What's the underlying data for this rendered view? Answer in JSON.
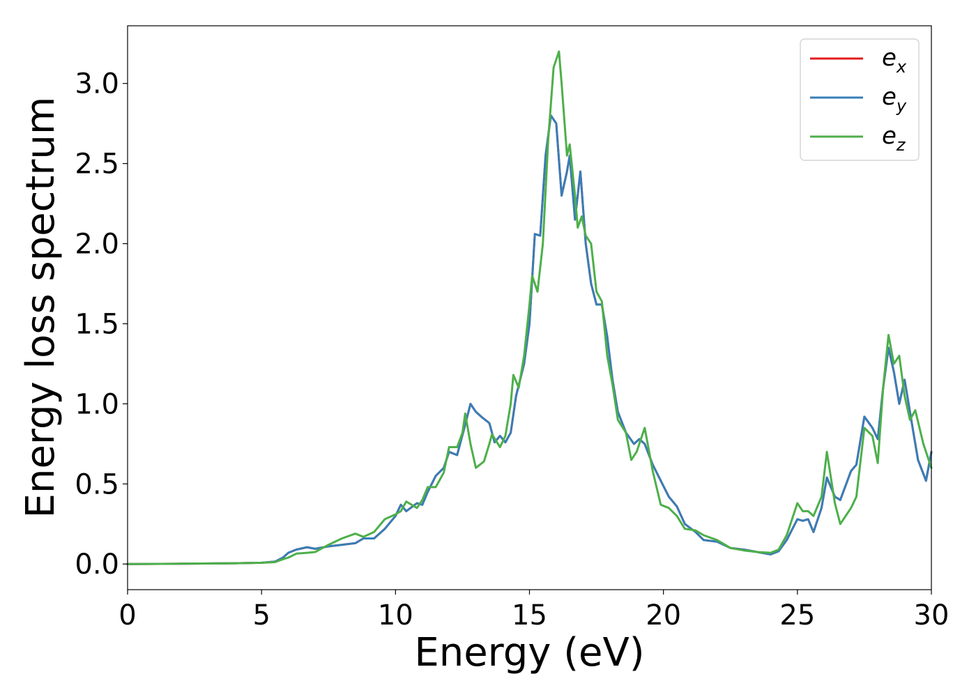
{
  "chart_data": {
    "type": "line",
    "title": "",
    "xlabel": "Energy (eV)",
    "ylabel": "Energy loss spectrum",
    "xlim": [
      0,
      30
    ],
    "ylim": [
      -0.16,
      3.36
    ],
    "xticks": [
      0,
      5,
      10,
      15,
      20,
      25,
      30
    ],
    "xtick_labels": [
      "0",
      "5",
      "10",
      "15",
      "20",
      "25",
      "30"
    ],
    "yticks": [
      0.0,
      0.5,
      1.0,
      1.5,
      2.0,
      2.5,
      3.0
    ],
    "ytick_labels": [
      "0.0",
      "0.5",
      "1.0",
      "1.5",
      "2.0",
      "2.5",
      "3.0"
    ],
    "grid": false,
    "legend_position": "top-right",
    "series": [
      {
        "name": "e",
        "subscript": "x",
        "color": "#e41a1c",
        "points": [
          [
            0,
            0.0
          ],
          [
            2,
            0.002
          ],
          [
            4,
            0.005
          ],
          [
            5,
            0.008
          ],
          [
            5.5,
            0.015
          ],
          [
            5.8,
            0.04
          ],
          [
            6,
            0.07
          ],
          [
            6.3,
            0.09
          ],
          [
            6.7,
            0.105
          ],
          [
            7,
            0.095
          ],
          [
            7.5,
            0.11
          ],
          [
            8,
            0.12
          ],
          [
            8.5,
            0.13
          ],
          [
            8.8,
            0.16
          ],
          [
            9.2,
            0.16
          ],
          [
            9.6,
            0.22
          ],
          [
            10,
            0.3
          ],
          [
            10.2,
            0.37
          ],
          [
            10.4,
            0.33
          ],
          [
            10.8,
            0.38
          ],
          [
            11,
            0.37
          ],
          [
            11.2,
            0.45
          ],
          [
            11.5,
            0.55
          ],
          [
            11.8,
            0.6
          ],
          [
            12,
            0.7
          ],
          [
            12.3,
            0.68
          ],
          [
            12.6,
            0.87
          ],
          [
            12.8,
            1.0
          ],
          [
            13.0,
            0.95
          ],
          [
            13.2,
            0.92
          ],
          [
            13.5,
            0.88
          ],
          [
            13.7,
            0.76
          ],
          [
            13.9,
            0.8
          ],
          [
            14.1,
            0.76
          ],
          [
            14.3,
            0.82
          ],
          [
            14.5,
            1.05
          ],
          [
            14.8,
            1.25
          ],
          [
            15.0,
            1.5
          ],
          [
            15.2,
            2.06
          ],
          [
            15.4,
            2.05
          ],
          [
            15.6,
            2.55
          ],
          [
            15.8,
            2.8
          ],
          [
            16.0,
            2.75
          ],
          [
            16.2,
            2.3
          ],
          [
            16.4,
            2.45
          ],
          [
            16.5,
            2.55
          ],
          [
            16.7,
            2.15
          ],
          [
            16.9,
            2.45
          ],
          [
            17.1,
            2.0
          ],
          [
            17.3,
            1.75
          ],
          [
            17.5,
            1.62
          ],
          [
            17.7,
            1.62
          ],
          [
            17.9,
            1.42
          ],
          [
            18.1,
            1.15
          ],
          [
            18.3,
            0.95
          ],
          [
            18.6,
            0.82
          ],
          [
            18.9,
            0.75
          ],
          [
            19.1,
            0.78
          ],
          [
            19.3,
            0.75
          ],
          [
            19.6,
            0.62
          ],
          [
            19.9,
            0.52
          ],
          [
            20.2,
            0.42
          ],
          [
            20.5,
            0.36
          ],
          [
            20.8,
            0.25
          ],
          [
            21.2,
            0.2
          ],
          [
            21.5,
            0.15
          ],
          [
            22,
            0.14
          ],
          [
            22.5,
            0.1
          ],
          [
            23,
            0.09
          ],
          [
            23.5,
            0.075
          ],
          [
            24,
            0.06
          ],
          [
            24.3,
            0.08
          ],
          [
            24.6,
            0.15
          ],
          [
            25,
            0.28
          ],
          [
            25.2,
            0.27
          ],
          [
            25.4,
            0.28
          ],
          [
            25.6,
            0.2
          ],
          [
            25.9,
            0.35
          ],
          [
            26.1,
            0.54
          ],
          [
            26.4,
            0.42
          ],
          [
            26.6,
            0.4
          ],
          [
            27,
            0.58
          ],
          [
            27.2,
            0.62
          ],
          [
            27.5,
            0.92
          ],
          [
            27.8,
            0.85
          ],
          [
            28.0,
            0.78
          ],
          [
            28.2,
            1.1
          ],
          [
            28.4,
            1.35
          ],
          [
            28.6,
            1.2
          ],
          [
            28.8,
            1.0
          ],
          [
            29.0,
            1.15
          ],
          [
            29.3,
            0.85
          ],
          [
            29.5,
            0.65
          ],
          [
            29.8,
            0.52
          ],
          [
            30,
            0.7
          ]
        ]
      },
      {
        "name": "e",
        "subscript": "y",
        "color": "#377eb8",
        "points": [
          [
            0,
            0.0
          ],
          [
            2,
            0.002
          ],
          [
            4,
            0.005
          ],
          [
            5,
            0.008
          ],
          [
            5.5,
            0.015
          ],
          [
            5.8,
            0.04
          ],
          [
            6,
            0.07
          ],
          [
            6.3,
            0.09
          ],
          [
            6.7,
            0.105
          ],
          [
            7,
            0.095
          ],
          [
            7.5,
            0.11
          ],
          [
            8,
            0.12
          ],
          [
            8.5,
            0.13
          ],
          [
            8.8,
            0.16
          ],
          [
            9.2,
            0.16
          ],
          [
            9.6,
            0.22
          ],
          [
            10,
            0.3
          ],
          [
            10.2,
            0.37
          ],
          [
            10.4,
            0.33
          ],
          [
            10.8,
            0.38
          ],
          [
            11,
            0.37
          ],
          [
            11.2,
            0.45
          ],
          [
            11.5,
            0.55
          ],
          [
            11.8,
            0.6
          ],
          [
            12,
            0.7
          ],
          [
            12.3,
            0.68
          ],
          [
            12.6,
            0.87
          ],
          [
            12.8,
            1.0
          ],
          [
            13.0,
            0.95
          ],
          [
            13.2,
            0.92
          ],
          [
            13.5,
            0.88
          ],
          [
            13.7,
            0.76
          ],
          [
            13.9,
            0.8
          ],
          [
            14.1,
            0.76
          ],
          [
            14.3,
            0.82
          ],
          [
            14.5,
            1.05
          ],
          [
            14.8,
            1.25
          ],
          [
            15.0,
            1.5
          ],
          [
            15.2,
            2.06
          ],
          [
            15.4,
            2.05
          ],
          [
            15.6,
            2.55
          ],
          [
            15.8,
            2.8
          ],
          [
            16.0,
            2.75
          ],
          [
            16.2,
            2.3
          ],
          [
            16.4,
            2.45
          ],
          [
            16.5,
            2.55
          ],
          [
            16.7,
            2.15
          ],
          [
            16.9,
            2.45
          ],
          [
            17.1,
            2.0
          ],
          [
            17.3,
            1.75
          ],
          [
            17.5,
            1.62
          ],
          [
            17.7,
            1.62
          ],
          [
            17.9,
            1.42
          ],
          [
            18.1,
            1.15
          ],
          [
            18.3,
            0.95
          ],
          [
            18.6,
            0.82
          ],
          [
            18.9,
            0.75
          ],
          [
            19.1,
            0.78
          ],
          [
            19.3,
            0.75
          ],
          [
            19.6,
            0.62
          ],
          [
            19.9,
            0.52
          ],
          [
            20.2,
            0.42
          ],
          [
            20.5,
            0.36
          ],
          [
            20.8,
            0.25
          ],
          [
            21.2,
            0.2
          ],
          [
            21.5,
            0.15
          ],
          [
            22,
            0.14
          ],
          [
            22.5,
            0.1
          ],
          [
            23,
            0.09
          ],
          [
            23.5,
            0.075
          ],
          [
            24,
            0.06
          ],
          [
            24.3,
            0.08
          ],
          [
            24.6,
            0.15
          ],
          [
            25,
            0.28
          ],
          [
            25.2,
            0.27
          ],
          [
            25.4,
            0.28
          ],
          [
            25.6,
            0.2
          ],
          [
            25.9,
            0.35
          ],
          [
            26.1,
            0.54
          ],
          [
            26.4,
            0.42
          ],
          [
            26.6,
            0.4
          ],
          [
            27,
            0.58
          ],
          [
            27.2,
            0.62
          ],
          [
            27.5,
            0.92
          ],
          [
            27.8,
            0.85
          ],
          [
            28.0,
            0.78
          ],
          [
            28.2,
            1.1
          ],
          [
            28.4,
            1.35
          ],
          [
            28.6,
            1.2
          ],
          [
            28.8,
            1.0
          ],
          [
            29.0,
            1.15
          ],
          [
            29.3,
            0.85
          ],
          [
            29.5,
            0.65
          ],
          [
            29.8,
            0.52
          ],
          [
            30,
            0.7
          ]
        ]
      },
      {
        "name": "e",
        "subscript": "z",
        "color": "#4daf4a",
        "points": [
          [
            0,
            0.0
          ],
          [
            2,
            0.002
          ],
          [
            4,
            0.005
          ],
          [
            5,
            0.008
          ],
          [
            5.5,
            0.012
          ],
          [
            5.8,
            0.03
          ],
          [
            6,
            0.04
          ],
          [
            6.3,
            0.065
          ],
          [
            6.7,
            0.07
          ],
          [
            7,
            0.075
          ],
          [
            7.5,
            0.12
          ],
          [
            8,
            0.16
          ],
          [
            8.5,
            0.19
          ],
          [
            8.8,
            0.17
          ],
          [
            9.2,
            0.2
          ],
          [
            9.6,
            0.28
          ],
          [
            10,
            0.31
          ],
          [
            10.2,
            0.33
          ],
          [
            10.4,
            0.39
          ],
          [
            10.8,
            0.35
          ],
          [
            11,
            0.4
          ],
          [
            11.2,
            0.48
          ],
          [
            11.5,
            0.48
          ],
          [
            11.8,
            0.57
          ],
          [
            12,
            0.73
          ],
          [
            12.3,
            0.73
          ],
          [
            12.5,
            0.82
          ],
          [
            12.6,
            0.94
          ],
          [
            12.8,
            0.75
          ],
          [
            13.0,
            0.6
          ],
          [
            13.3,
            0.64
          ],
          [
            13.5,
            0.75
          ],
          [
            13.6,
            0.81
          ],
          [
            13.9,
            0.73
          ],
          [
            14.1,
            0.8
          ],
          [
            14.3,
            1.0
          ],
          [
            14.4,
            1.18
          ],
          [
            14.6,
            1.1
          ],
          [
            14.8,
            1.3
          ],
          [
            15.0,
            1.62
          ],
          [
            15.1,
            1.8
          ],
          [
            15.3,
            1.7
          ],
          [
            15.5,
            2.0
          ],
          [
            15.7,
            2.65
          ],
          [
            15.9,
            3.1
          ],
          [
            16.1,
            3.2
          ],
          [
            16.2,
            3.0
          ],
          [
            16.4,
            2.55
          ],
          [
            16.5,
            2.62
          ],
          [
            16.7,
            2.3
          ],
          [
            16.8,
            2.1
          ],
          [
            16.95,
            2.17
          ],
          [
            17.1,
            2.05
          ],
          [
            17.3,
            2.0
          ],
          [
            17.5,
            1.7
          ],
          [
            17.7,
            1.64
          ],
          [
            17.9,
            1.3
          ],
          [
            18.1,
            1.12
          ],
          [
            18.3,
            0.9
          ],
          [
            18.6,
            0.82
          ],
          [
            18.8,
            0.65
          ],
          [
            19.0,
            0.7
          ],
          [
            19.3,
            0.85
          ],
          [
            19.6,
            0.58
          ],
          [
            19.9,
            0.37
          ],
          [
            20.2,
            0.35
          ],
          [
            20.5,
            0.3
          ],
          [
            20.8,
            0.22
          ],
          [
            21.2,
            0.21
          ],
          [
            21.5,
            0.18
          ],
          [
            22,
            0.15
          ],
          [
            22.5,
            0.1
          ],
          [
            23,
            0.085
          ],
          [
            23.5,
            0.075
          ],
          [
            24,
            0.07
          ],
          [
            24.3,
            0.09
          ],
          [
            24.6,
            0.18
          ],
          [
            25,
            0.38
          ],
          [
            25.2,
            0.33
          ],
          [
            25.4,
            0.33
          ],
          [
            25.6,
            0.3
          ],
          [
            25.9,
            0.42
          ],
          [
            26.1,
            0.7
          ],
          [
            26.4,
            0.38
          ],
          [
            26.6,
            0.25
          ],
          [
            27,
            0.35
          ],
          [
            27.2,
            0.42
          ],
          [
            27.5,
            0.85
          ],
          [
            27.8,
            0.8
          ],
          [
            28.0,
            0.63
          ],
          [
            28.2,
            1.1
          ],
          [
            28.4,
            1.43
          ],
          [
            28.6,
            1.25
          ],
          [
            28.8,
            1.3
          ],
          [
            29.0,
            1.05
          ],
          [
            29.2,
            0.9
          ],
          [
            29.4,
            0.96
          ],
          [
            29.7,
            0.75
          ],
          [
            30,
            0.6
          ]
        ]
      }
    ]
  }
}
